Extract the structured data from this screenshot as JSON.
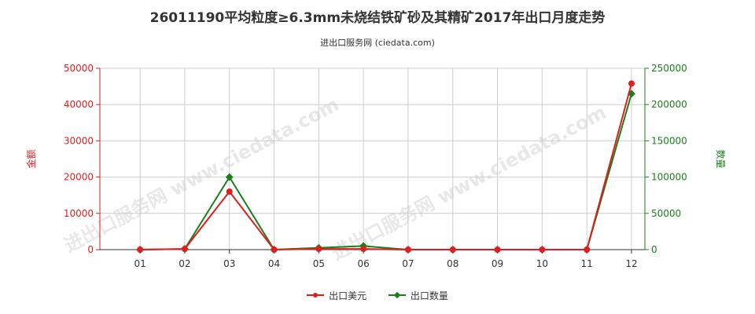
{
  "title": "26011190平均粒度≥6.3mm未烧结铁矿砂及其精矿2017年出口月度走势",
  "subtitle": "进出口服务网 (ciedata.com)",
  "watermark": "进出口服务网 www.ciedata.com",
  "colors": {
    "amount": "#e01e1e",
    "quantity": "#1a7f1a",
    "grid": "#cccccc",
    "axis": "#333333"
  },
  "chart_data": {
    "type": "line",
    "categories": [
      "01",
      "02",
      "03",
      "04",
      "05",
      "06",
      "07",
      "08",
      "09",
      "10",
      "11",
      "12"
    ],
    "y_left": {
      "label": "金额",
      "ylim": [
        0,
        50000
      ],
      "ticks": [
        0,
        10000,
        20000,
        30000,
        40000,
        50000
      ]
    },
    "y_right": {
      "label": "数量",
      "ylim": [
        0,
        250000
      ],
      "ticks": [
        0,
        50000,
        100000,
        150000,
        200000,
        250000
      ]
    },
    "series": [
      {
        "name": "出口美元",
        "axis": "left",
        "marker": "circle",
        "values": [
          0,
          200,
          16000,
          0,
          200,
          200,
          0,
          0,
          0,
          0,
          0,
          45800
        ]
      },
      {
        "name": "出口数量",
        "axis": "right",
        "marker": "diamond",
        "values": [
          0,
          1000,
          100000,
          0,
          2500,
          5000,
          0,
          0,
          0,
          0,
          0,
          215000
        ]
      }
    ],
    "grid": true,
    "legend_position": "bottom"
  }
}
